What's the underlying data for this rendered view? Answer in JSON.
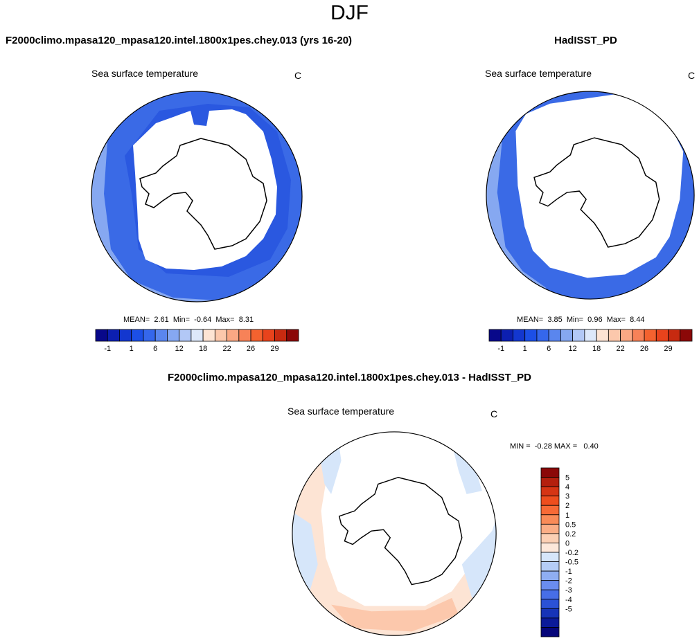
{
  "main_title": "DJF",
  "panels": [
    {
      "id": "model",
      "case_title": "F2000climo.mpasa120_mpasa120.intel.1800x1pes.chey.013 (yrs 16-20)",
      "field_label": "Sea surface temperature",
      "units": "C",
      "stats": {
        "mean_label": "MEAN=",
        "mean": "2.61",
        "min_label": "Min=",
        "min": "-0.64",
        "max_label": "Max=",
        "max": "8.31"
      }
    },
    {
      "id": "obs",
      "case_title": "HadISST_PD",
      "field_label": "Sea surface temperature",
      "units": "C",
      "stats": {
        "mean_label": "MEAN=",
        "mean": "3.85",
        "min_label": "Min=",
        "min": "0.96",
        "max_label": "Max=",
        "max": "8.44"
      }
    }
  ],
  "abs_colorbar": {
    "colors": [
      "#08088a",
      "#0c1fb0",
      "#1337cf",
      "#1c4fe6",
      "#3567ec",
      "#5a86ee",
      "#86a8f1",
      "#b2c8f6",
      "#dde8fa",
      "#fde4d4",
      "#fcc8ac",
      "#faa884",
      "#f78258",
      "#f4622f",
      "#e8431c",
      "#c72a10",
      "#8b0808"
    ],
    "tick_labels": [
      "-1",
      "1",
      "6",
      "12",
      "18",
      "22",
      "26",
      "29"
    ]
  },
  "diff_panel": {
    "title": "F2000climo.mpasa120_mpasa120.intel.1800x1pes.chey.013 - HadISST_PD",
    "field_label": "Sea surface temperature",
    "units": "C",
    "minmax_text": "MIN =  -0.28 MAX =   0.40"
  },
  "diff_colorbar": {
    "colors": [
      "#8b0808",
      "#b4200e",
      "#d63514",
      "#ee4e1e",
      "#f76a36",
      "#f98b58",
      "#fbae86",
      "#fcd0b4",
      "#fde8da",
      "#d6e6fa",
      "#b5cdf6",
      "#8faef2",
      "#6a8def",
      "#476ee8",
      "#2b52d6",
      "#1734b8",
      "#0b1a99",
      "#06067a"
    ],
    "tick_labels": [
      "5",
      "4",
      "3",
      "2",
      "1",
      "0.5",
      "0.2",
      "0",
      "-0.2",
      "-0.5",
      "-1",
      "-2",
      "-3",
      "-4",
      "-5"
    ]
  }
}
